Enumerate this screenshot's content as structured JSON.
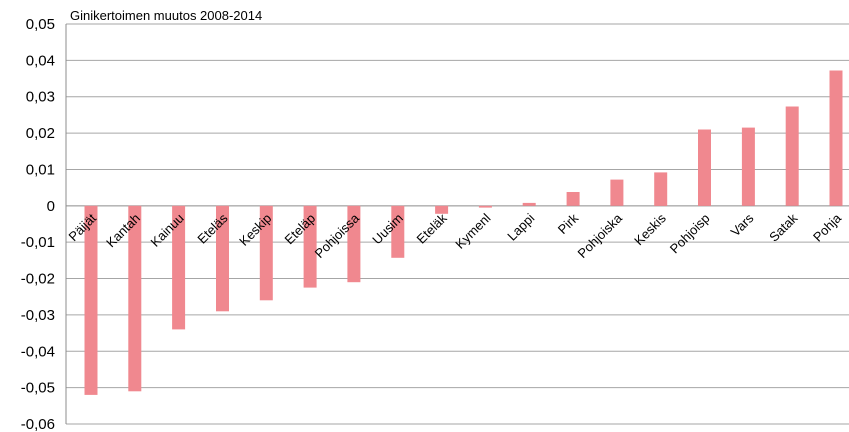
{
  "chart_data": {
    "type": "bar",
    "title": "Ginikertoimen muutos 2008-2014",
    "categories": [
      "Päijät",
      "Kantah",
      "Kainuu",
      "Eteläs",
      "Keskip",
      "Eteläp",
      "Pohjoissa",
      "Uusim",
      "Eteläk",
      "Kymenl",
      "Lappi",
      "Pirk",
      "Pohjoiska",
      "Keskis",
      "Pohjoisp",
      "Vars",
      "Satak",
      "Pohja"
    ],
    "values": [
      -0.052,
      -0.051,
      -0.034,
      -0.029,
      -0.026,
      -0.0225,
      -0.021,
      -0.0143,
      -0.0022,
      -0.0005,
      0.0008,
      0.0038,
      0.0072,
      0.0092,
      0.021,
      0.0215,
      0.0273,
      0.0372
    ],
    "ylim": [
      -0.06,
      0.05
    ],
    "yticks": [
      "0,05",
      "0,04",
      "0,03",
      "0,02",
      "0,01",
      "0",
      "-0,01",
      "-0,02",
      "-0,03",
      "-0,04",
      "-0,05",
      "-0,06"
    ],
    "ytick_values": [
      0.05,
      0.04,
      0.03,
      0.02,
      0.01,
      0,
      -0.01,
      -0.02,
      -0.03,
      -0.04,
      -0.05,
      -0.06
    ],
    "bar_color": "#f0888f",
    "grid": true
  }
}
